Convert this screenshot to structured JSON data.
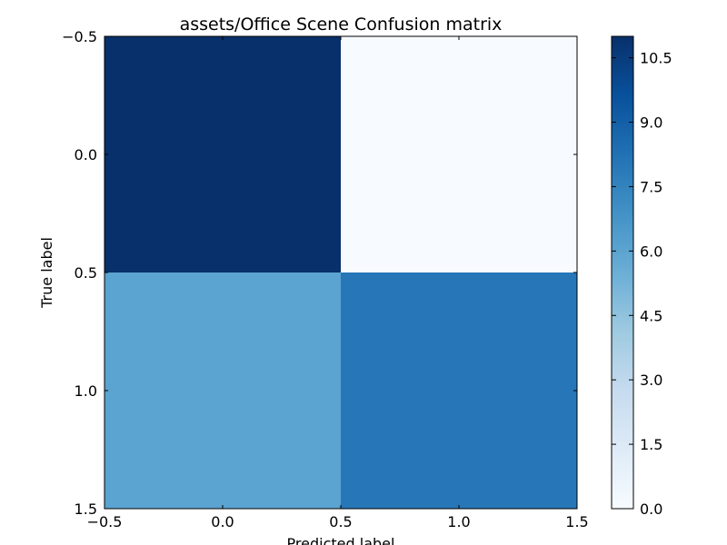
{
  "chart_data": {
    "type": "heatmap",
    "title": "assets/Office Scene Confusion matrix",
    "xlabel": "Predicted label",
    "ylabel": "True label",
    "x_ticks": [
      "−0.5",
      "0.0",
      "0.5",
      "1.0",
      "1.5"
    ],
    "y_ticks": [
      "−0.5",
      "0.0",
      "0.5",
      "1.0",
      "1.5"
    ],
    "xlim": [
      -0.5,
      1.5
    ],
    "ylim": [
      1.5,
      -0.5
    ],
    "matrix": [
      [
        11,
        0
      ],
      [
        5,
        8
      ]
    ],
    "colormap": "Blues",
    "colorbar": {
      "range": [
        0,
        11
      ],
      "ticks": [
        "0.0",
        "1.5",
        "3.0",
        "4.5",
        "6.0",
        "7.5",
        "9.0",
        "10.5"
      ]
    },
    "colors": {
      "cell_0_0": "#08306b",
      "cell_0_1": "#f7fbff",
      "cell_1_0": "#5ba3d0",
      "cell_1_1": "#2776b8"
    }
  }
}
